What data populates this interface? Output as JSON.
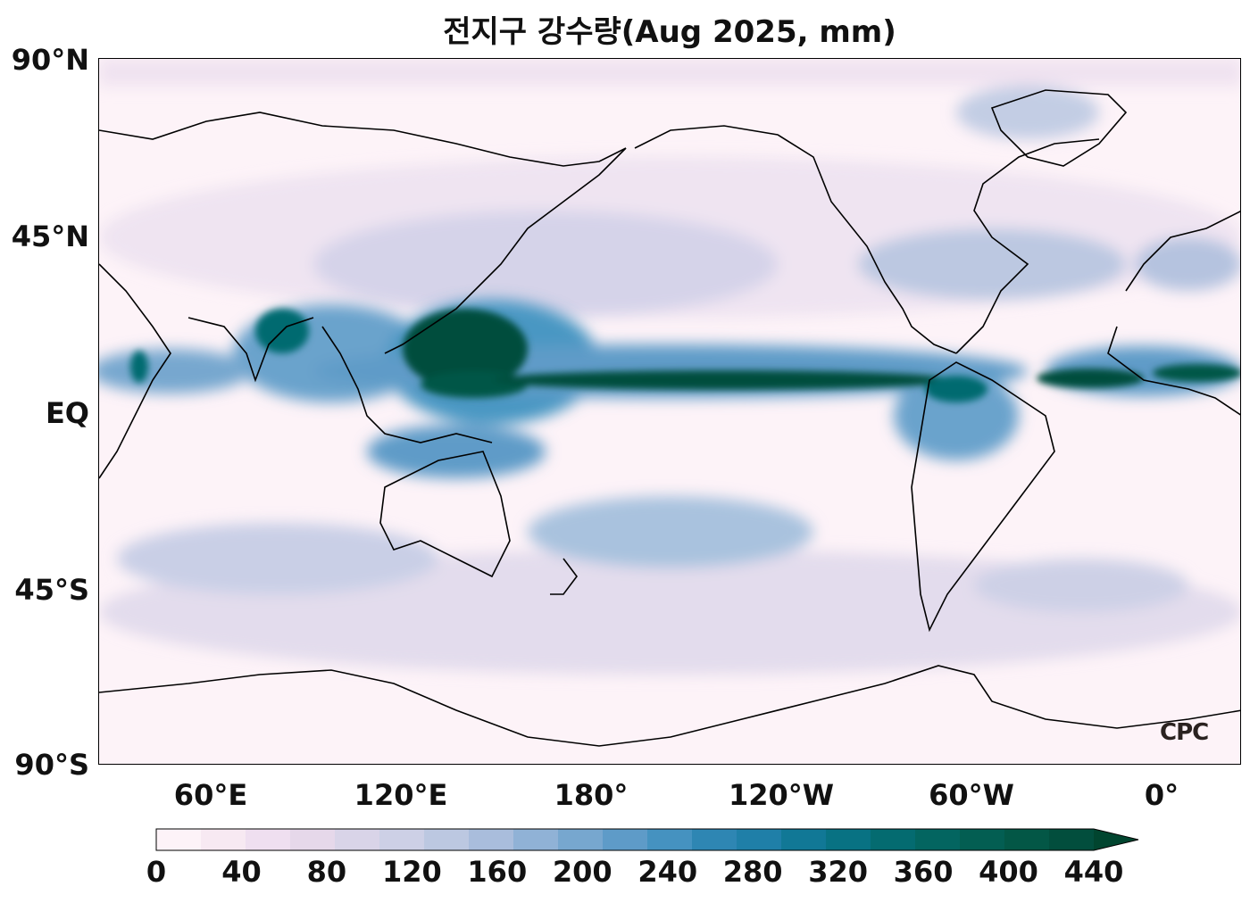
{
  "title": "전지구 강수량(Aug 2025, mm)",
  "lat_labels": [
    "90°N",
    "45°N",
    "EQ",
    "45°S",
    "90°S"
  ],
  "lon_labels": [
    "60°E",
    "120°E",
    "180°",
    "120°W",
    "60°W",
    "0°"
  ],
  "colorbar": {
    "ticks": [
      "0",
      "40",
      "80",
      "120",
      "160",
      "200",
      "240",
      "280",
      "320",
      "360",
      "400",
      "440"
    ],
    "colors": [
      "#fdf3f8",
      "#f7e9f2",
      "#efdff0",
      "#e6d8ea",
      "#d9d4e8",
      "#cdd0e6",
      "#bcc8e1",
      "#a9bddc",
      "#90b2d6",
      "#77a7cf",
      "#5e9bc8",
      "#4592c0",
      "#2e86b3",
      "#1f7fa8",
      "#117896",
      "#087283",
      "#046b70",
      "#036560",
      "#035e52",
      "#035746",
      "#024e3d",
      "#01452f"
    ],
    "extend": "max"
  },
  "logo": "CPC",
  "map": {
    "projection": "plate-carree",
    "central_longitude": 150,
    "lon_range": [
      -180,
      180
    ],
    "lat_range": [
      -90,
      90
    ],
    "colormap": "PuBuGn",
    "colors": {
      "coast": "#000000",
      "heavy": "#024e3d",
      "moderate": "#3a8fbf",
      "light": "#cdd0e6"
    }
  }
}
